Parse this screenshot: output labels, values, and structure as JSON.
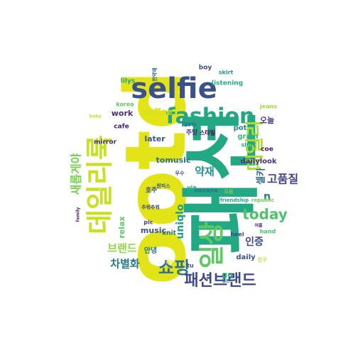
{
  "words": [
    {
      "text": "ootd",
      "color": "#e3e418"
    },
    {
      "text": "패션",
      "color": "#23a884"
    },
    {
      "text": "selfie",
      "color": "#3b518b"
    },
    {
      "text": "fashion",
      "color": "#22a785"
    },
    {
      "text": "데일리룩",
      "color": "#c8e020"
    },
    {
      "text": "일상",
      "color": "#5ec962"
    },
    {
      "text": "데일리",
      "color": "#addc30"
    },
    {
      "text": "쇼핑",
      "color": "#2c728e"
    },
    {
      "text": "패션브랜드",
      "color": "#3e4989"
    },
    {
      "text": "today",
      "color": "#4ec36b"
    },
    {
      "text": "새롭게야",
      "color": "#7ad151"
    },
    {
      "text": "브랜드",
      "color": "#8fd744"
    },
    {
      "text": "차별화",
      "color": "#2a788e"
    },
    {
      "text": "고품질",
      "color": "#404387"
    },
    {
      "text": "약재",
      "color": "#20928c"
    },
    {
      "text": "uniqlo",
      "color": "#1f9e89"
    },
    {
      "text": "인증",
      "color": "#3f4788"
    },
    {
      "text": "셀카",
      "color": "#31688e"
    },
    {
      "text": "오늘",
      "color": "#453882"
    },
    {
      "text": "coffee",
      "color": "#d8e219"
    },
    {
      "text": "work",
      "color": "#472d7b"
    },
    {
      "text": "music",
      "color": "#3b528b"
    },
    {
      "text": "tomusic",
      "color": "#2d708e"
    },
    {
      "text": "later",
      "color": "#38588c"
    },
    {
      "text": "relax",
      "color": "#5ac864"
    },
    {
      "text": "dailylook",
      "color": "#46337f"
    },
    {
      "text": "daily",
      "color": "#3a538b"
    },
    {
      "text": "gram",
      "color": "#35b779"
    },
    {
      "text": "pot",
      "color": "#25858e"
    },
    {
      "text": "izro",
      "color": "#2e6f8e"
    },
    {
      "text": "n",
      "color": "#2c728e"
    },
    {
      "text": "coe",
      "color": "#481769"
    },
    {
      "text": "안녕",
      "color": "#2a788e"
    },
    {
      "text": "knit",
      "color": "#2e6d8e"
    },
    {
      "text": "go",
      "color": "#2fb47c"
    },
    {
      "text": "lilys",
      "color": "#20a386"
    },
    {
      "text": "boy",
      "color": "#3e4a89"
    },
    {
      "text": "listening",
      "color": "#25ab82"
    },
    {
      "text": "skirt",
      "color": "#1fa188"
    },
    {
      "text": "jeans",
      "color": "#9bd93c"
    },
    {
      "text": "korea",
      "color": "#5ec962"
    },
    {
      "text": "cafe",
      "color": "#482374"
    },
    {
      "text": "mirror",
      "color": "#472c7a"
    },
    {
      "text": "banana",
      "color": "#2b748e"
    },
    {
      "text": "pic",
      "color": "#404387"
    },
    {
      "text": "tu",
      "color": "#3b528b"
    },
    {
      "text": "heel",
      "color": "#3e4a89"
    },
    {
      "text": "hand",
      "color": "#4ac16d"
    },
    {
      "text": "via",
      "color": "#29af7f"
    },
    {
      "text": "shirt",
      "color": "#22a785"
    },
    {
      "text": "주말",
      "color": "#472f7d"
    },
    {
      "text": "스타일",
      "color": "#440154"
    },
    {
      "text": "호주",
      "color": "#3b518b"
    },
    {
      "text": "우수",
      "color": "#3e4c8a"
    },
    {
      "text": "모음",
      "color": "#7ad151"
    },
    {
      "text": "추워추워",
      "color": "#414487"
    },
    {
      "text": "해외",
      "color": "#f4e61e"
    },
    {
      "text": "친구",
      "color": "#bade28"
    },
    {
      "text": "republic",
      "color": "#6ccd5a"
    },
    {
      "text": "friendship",
      "color": "#22a884"
    },
    {
      "text": "원피스",
      "color": "#365c8d"
    },
    {
      "text": "일본",
      "color": "#2d708e"
    },
    {
      "text": "한약재",
      "color": "#31688e"
    },
    {
      "text": "여름",
      "color": "#482576"
    },
    {
      "text": "baby",
      "color": "#c2df23"
    },
    {
      "text": "family",
      "color": "#481f70"
    }
  ]
}
